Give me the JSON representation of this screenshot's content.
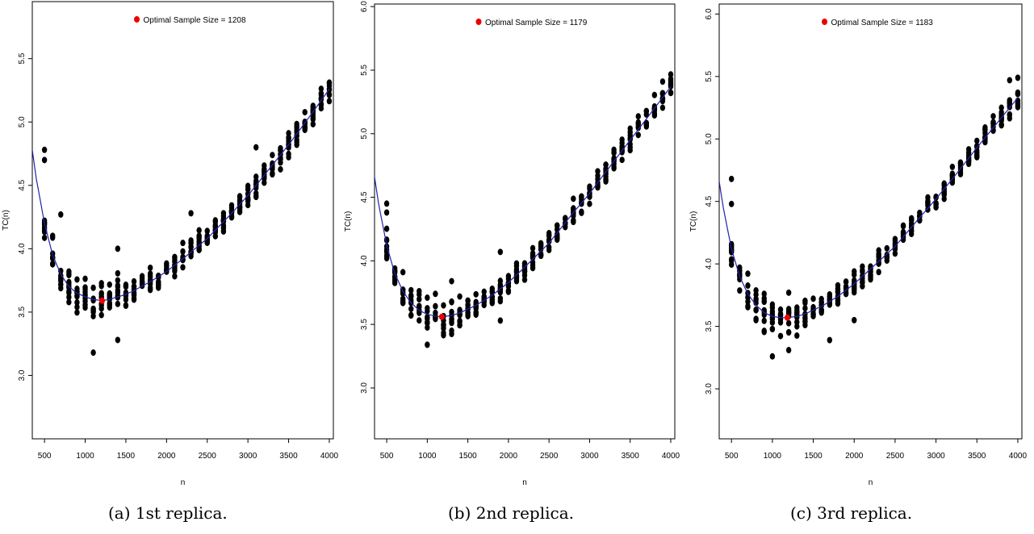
{
  "chart_data": [
    {
      "type": "scatter",
      "caption": "(a) 1st replica.",
      "xlabel": "n",
      "ylabel": "TC(n)",
      "legend": "Optimal Sample Size = 1208",
      "legend_placement": "top-center",
      "xlim": [
        350,
        4050
      ],
      "ylim": [
        2.5,
        5.95
      ],
      "xticks": [
        500,
        1000,
        1500,
        2000,
        2500,
        3000,
        3500,
        4000
      ],
      "yticks": [
        3.0,
        3.5,
        4.0,
        4.5,
        5.0,
        5.5
      ],
      "optimal": {
        "x": 1208,
        "y": 3.59
      },
      "curve": {
        "x": [
          350,
          400,
          500,
          600,
          700,
          800,
          900,
          1000,
          1100,
          1208,
          1300,
          1400,
          1500,
          1600,
          1800,
          2000,
          2200,
          2500,
          2800,
          3000,
          3200,
          3500,
          3800,
          4000
        ],
        "y": [
          4.78,
          4.55,
          4.2,
          3.95,
          3.8,
          3.7,
          3.65,
          3.62,
          3.6,
          3.59,
          3.6,
          3.62,
          3.64,
          3.67,
          3.74,
          3.82,
          3.92,
          4.08,
          4.28,
          4.42,
          4.58,
          4.82,
          5.08,
          5.26
        ]
      },
      "seed": 11,
      "outliers": [
        {
          "x": 500,
          "y": 4.78
        },
        {
          "x": 500,
          "y": 4.7
        },
        {
          "x": 1100,
          "y": 3.18
        },
        {
          "x": 1400,
          "y": 3.28
        },
        {
          "x": 1400,
          "y": 4.0
        },
        {
          "x": 700,
          "y": 4.27
        },
        {
          "x": 2300,
          "y": 4.28
        },
        {
          "x": 3100,
          "y": 4.8
        }
      ]
    },
    {
      "type": "scatter",
      "caption": "(b) 2nd replica.",
      "xlabel": "n",
      "ylabel": "TC(n)",
      "legend": "Optimal Sample Size = 1179",
      "legend_placement": "top-center",
      "xlim": [
        350,
        4050
      ],
      "ylim": [
        2.6,
        6.02
      ],
      "xticks": [
        500,
        1000,
        1500,
        2000,
        2500,
        3000,
        3500,
        4000
      ],
      "yticks": [
        3.0,
        3.5,
        4.0,
        4.5,
        5.0,
        5.5,
        6.0
      ],
      "optimal": {
        "x": 1179,
        "y": 3.56
      },
      "curve": {
        "x": [
          350,
          400,
          500,
          600,
          700,
          800,
          900,
          1000,
          1100,
          1179,
          1300,
          1400,
          1500,
          1600,
          1800,
          2000,
          2200,
          2500,
          2800,
          3000,
          3200,
          3500,
          3800,
          4000
        ],
        "y": [
          4.66,
          4.45,
          4.12,
          3.9,
          3.76,
          3.67,
          3.61,
          3.58,
          3.565,
          3.56,
          3.57,
          3.59,
          3.62,
          3.65,
          3.73,
          3.83,
          3.95,
          4.14,
          4.38,
          4.53,
          4.7,
          4.95,
          5.2,
          5.37
        ]
      },
      "seed": 23,
      "outliers": [
        {
          "x": 500,
          "y": 4.45
        },
        {
          "x": 500,
          "y": 4.38
        },
        {
          "x": 1000,
          "y": 3.34
        },
        {
          "x": 1300,
          "y": 3.84
        },
        {
          "x": 3900,
          "y": 5.41
        },
        {
          "x": 1900,
          "y": 4.07
        },
        {
          "x": 1900,
          "y": 3.53
        }
      ]
    },
    {
      "type": "scatter",
      "caption": "(c) 3rd replica.",
      "xlabel": "n",
      "ylabel": "TC(n)",
      "legend": "Optimal Sample Size = 1183",
      "legend_placement": "top-center",
      "xlim": [
        350,
        4050
      ],
      "ylim": [
        2.6,
        6.08
      ],
      "xticks": [
        500,
        1000,
        1500,
        2000,
        2500,
        3000,
        3500,
        4000
      ],
      "yticks": [
        3.0,
        3.5,
        4.0,
        4.5,
        5.0,
        5.5,
        6.0
      ],
      "optimal": {
        "x": 1183,
        "y": 3.57
      },
      "curve": {
        "x": [
          350,
          400,
          500,
          600,
          700,
          800,
          900,
          1000,
          1100,
          1183,
          1300,
          1400,
          1500,
          1600,
          1800,
          2000,
          2200,
          2500,
          2800,
          3000,
          3200,
          3500,
          3800,
          4000
        ],
        "y": [
          4.66,
          4.45,
          4.12,
          3.9,
          3.76,
          3.67,
          3.61,
          3.58,
          3.57,
          3.57,
          3.58,
          3.6,
          3.63,
          3.66,
          3.74,
          3.84,
          3.96,
          4.14,
          4.37,
          4.52,
          4.68,
          4.93,
          5.17,
          5.33
        ]
      },
      "seed": 37,
      "outliers": [
        {
          "x": 500,
          "y": 4.68
        },
        {
          "x": 500,
          "y": 4.48
        },
        {
          "x": 1000,
          "y": 3.26
        },
        {
          "x": 1200,
          "y": 3.31
        },
        {
          "x": 1700,
          "y": 3.39
        },
        {
          "x": 2000,
          "y": 3.55
        },
        {
          "x": 3900,
          "y": 5.47
        },
        {
          "x": 4000,
          "y": 5.49
        }
      ]
    }
  ],
  "colors": {
    "points": "#000000",
    "curve": "#2222aa",
    "optimal": "#ee0000",
    "axis": "#000000"
  }
}
